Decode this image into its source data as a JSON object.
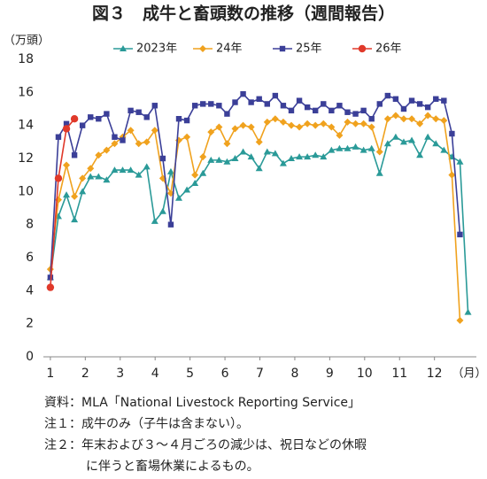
{
  "chart_data": {
    "type": "line",
    "title": "図３　成牛と畜頭数の推移（週間報告）",
    "y_label": "（万頭）",
    "x_label": "（月）",
    "x": [
      1.0,
      1.23,
      1.46,
      1.69,
      1.92,
      2.15,
      2.38,
      2.61,
      2.84,
      3.07,
      3.3,
      3.53,
      3.76,
      3.99,
      4.22,
      4.45,
      4.68,
      4.91,
      5.14,
      5.37,
      5.6,
      5.83,
      6.06,
      6.29,
      6.52,
      6.75,
      6.98,
      7.21,
      7.44,
      7.67,
      7.9,
      8.13,
      8.36,
      8.59,
      8.82,
      9.05,
      9.28,
      9.51,
      9.74,
      9.97,
      10.2,
      10.43,
      10.66,
      10.89,
      11.12,
      11.35,
      11.58,
      11.81,
      12.04,
      12.27,
      12.5,
      12.73,
      12.96
    ],
    "series": [
      {
        "name": "2023年",
        "color": "#2a9a98",
        "marker": "triangle",
        "values": [
          4.8,
          8.5,
          9.8,
          8.3,
          10.0,
          10.9,
          10.9,
          10.7,
          11.3,
          11.3,
          11.3,
          11.0,
          11.5,
          8.2,
          8.8,
          11.2,
          9.6,
          10.1,
          10.5,
          11.1,
          11.9,
          11.9,
          11.8,
          12.0,
          12.4,
          12.1,
          11.4,
          12.4,
          12.3,
          11.7,
          12.0,
          12.1,
          12.1,
          12.2,
          12.1,
          12.5,
          12.6,
          12.6,
          12.7,
          12.5,
          12.6,
          11.1,
          12.9,
          13.3,
          13.0,
          13.1,
          12.2,
          13.3,
          12.9,
          12.5,
          12.1,
          11.8,
          2.7
        ]
      },
      {
        "name": "24年",
        "color": "#f0a21e",
        "marker": "diamond",
        "values": [
          5.3,
          9.5,
          11.6,
          9.7,
          10.8,
          11.4,
          12.2,
          12.5,
          12.9,
          13.3,
          13.7,
          12.9,
          13.0,
          13.7,
          10.8,
          9.9,
          13.1,
          13.3,
          11.0,
          12.1,
          13.6,
          13.9,
          12.9,
          13.8,
          14.0,
          13.9,
          13.0,
          14.2,
          14.4,
          14.2,
          14.0,
          13.9,
          14.1,
          14.0,
          14.1,
          13.9,
          13.4,
          14.2,
          14.1,
          14.1,
          13.9,
          12.4,
          14.4,
          14.6,
          14.4,
          14.4,
          14.1,
          14.6,
          14.4,
          14.3,
          11.0,
          2.2,
          null
        ]
      },
      {
        "name": "25年",
        "color": "#3b3f98",
        "marker": "square",
        "values": [
          4.8,
          13.3,
          14.1,
          12.2,
          14.0,
          14.5,
          14.4,
          14.7,
          13.3,
          13.1,
          14.9,
          14.8,
          14.5,
          15.2,
          12.0,
          8.0,
          14.4,
          14.3,
          15.2,
          15.3,
          15.3,
          15.2,
          14.7,
          15.4,
          15.9,
          15.4,
          15.6,
          15.3,
          15.8,
          15.2,
          14.9,
          15.5,
          15.1,
          14.9,
          15.3,
          14.9,
          15.2,
          14.8,
          14.7,
          14.9,
          14.4,
          15.3,
          15.8,
          15.6,
          15.0,
          15.5,
          15.3,
          15.1,
          15.6,
          15.5,
          13.5,
          7.4,
          null
        ]
      },
      {
        "name": "26年",
        "color": "#e0392a",
        "marker": "circle",
        "values": [
          4.2,
          10.8,
          13.8,
          14.4,
          null,
          null,
          null,
          null,
          null,
          null,
          null,
          null,
          null,
          null,
          null,
          null,
          null,
          null,
          null,
          null,
          null,
          null,
          null,
          null,
          null,
          null,
          null,
          null,
          null,
          null,
          null,
          null,
          null,
          null,
          null,
          null,
          null,
          null,
          null,
          null,
          null,
          null,
          null,
          null,
          null,
          null,
          null,
          null,
          null,
          null,
          null,
          null,
          null
        ]
      }
    ],
    "xlim": [
      0.8,
      13.2
    ],
    "xticks": [
      1,
      2,
      3,
      4,
      5,
      6,
      7,
      8,
      9,
      10,
      11,
      12
    ],
    "ylim": [
      0,
      18
    ],
    "yticks": [
      0,
      2,
      4,
      6,
      8,
      10,
      12,
      14,
      16,
      18
    ],
    "grid": false,
    "notes": [
      "資料：MLA「National Livestock Reporting Service」",
      "注１：成牛のみ（子牛は含まない）。",
      "注２：年末および３～４月ごろの減少は、祝日などの休暇",
      "に伴うと畜場休業によるもの。"
    ]
  }
}
